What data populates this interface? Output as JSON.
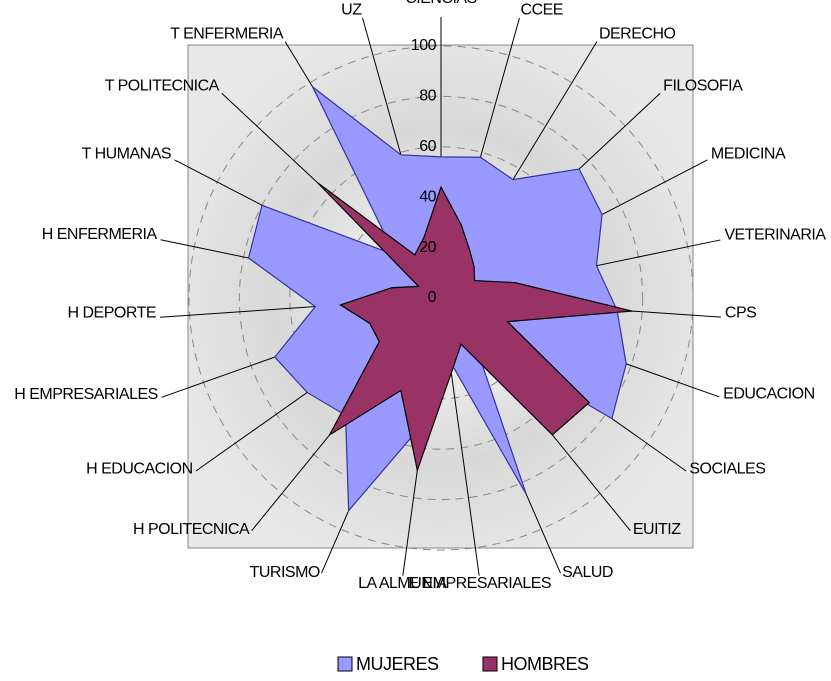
{
  "chart_data": {
    "type": "radar",
    "categories": [
      "CIENCIAS",
      "CCEE",
      "DERECHO",
      "FILOSOFIA",
      "MEDICINA",
      "VETERINARIA",
      "CPS",
      "EDUCACION",
      "SOCIALES",
      "EUITIZ",
      "SALUD",
      "E EMPRESARIALES",
      "LA ALMUNIA",
      "TURISMO",
      "H POLITECNICA",
      "H EDUCACION",
      "H EMPRESARIALES",
      "H DEPORTE",
      "H ENFERMERIA",
      "T HUMANAS",
      "T POLITECNICA",
      "T ENFERMERIA",
      "UZ"
    ],
    "series": [
      {
        "name": "MUJERES",
        "color": "#9999ff",
        "values": [
          56,
          58,
          55,
          75,
          72,
          63,
          70,
          78,
          83,
          20,
          85,
          25,
          50,
          92,
          60,
          65,
          70,
          50,
          78,
          80,
          25,
          98,
          59
        ]
      },
      {
        "name": "HOMBRES",
        "color": "#993366",
        "values": [
          44,
          30,
          22,
          18,
          15,
          30,
          76,
          28,
          72,
          70,
          20,
          30,
          69,
          40,
          70,
          30,
          30,
          40,
          20,
          10,
          67,
          20,
          25
        ]
      }
    ],
    "ylim": [
      0,
      100
    ],
    "yticks": [
      0,
      20,
      40,
      60,
      80,
      100
    ],
    "grid": true,
    "legend": "bottom"
  }
}
